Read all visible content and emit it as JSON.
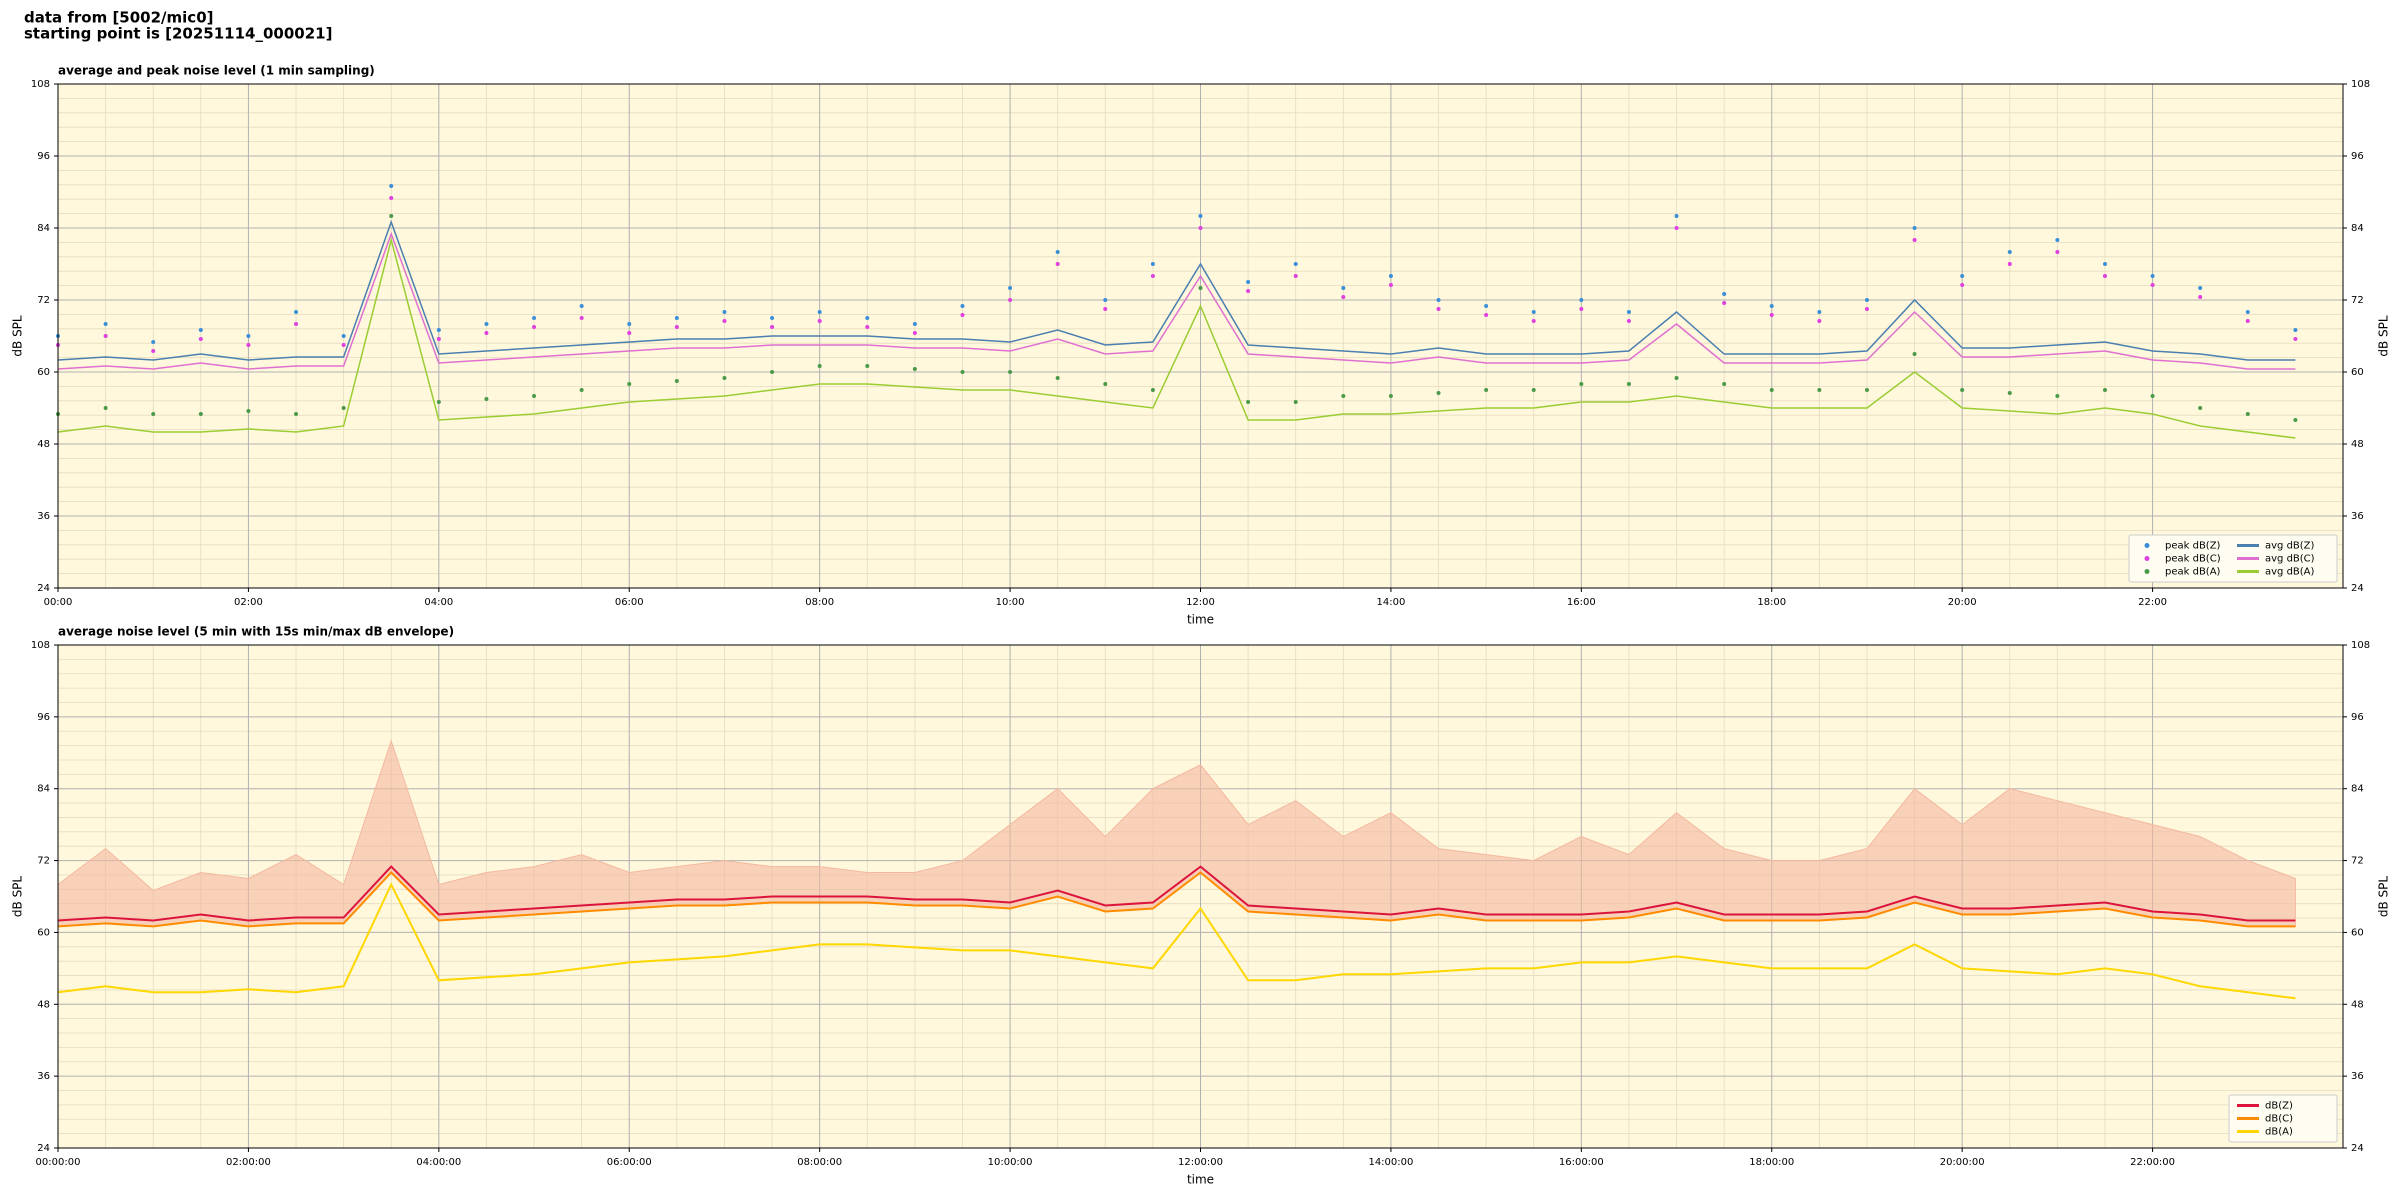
{
  "header": {
    "lines": [
      "data from [5002/mic0]",
      "starting point is [20251114_000021]"
    ]
  },
  "chart_data": [
    {
      "type": "line",
      "title": "average and peak noise level (1 min sampling)",
      "x_label": "time",
      "y_label": "dB SPL",
      "x": [
        0,
        0.5,
        1,
        1.5,
        2,
        2.5,
        3,
        3.5,
        4,
        4.5,
        5,
        5.5,
        6,
        6.5,
        7,
        7.5,
        8,
        8.5,
        9,
        9.5,
        10,
        10.5,
        11,
        11.5,
        12,
        12.5,
        13,
        13.5,
        14,
        14.5,
        15,
        15.5,
        16,
        16.5,
        17,
        17.5,
        18,
        18.5,
        19,
        19.5,
        20,
        20.5,
        21,
        21.5,
        22,
        22.5,
        23,
        23.5
      ],
      "xlim": [
        0,
        24
      ],
      "xticks": [
        {
          "value": 0,
          "label": "00:00"
        },
        {
          "value": 2,
          "label": "02:00"
        },
        {
          "value": 4,
          "label": "04:00"
        },
        {
          "value": 6,
          "label": "06:00"
        },
        {
          "value": 8,
          "label": "08:00"
        },
        {
          "value": 10,
          "label": "10:00"
        },
        {
          "value": 12,
          "label": "12:00"
        },
        {
          "value": 14,
          "label": "14:00"
        },
        {
          "value": 16,
          "label": "16:00"
        },
        {
          "value": 18,
          "label": "18:00"
        },
        {
          "value": 20,
          "label": "20:00"
        },
        {
          "value": 22,
          "label": "22:00"
        }
      ],
      "ylim": [
        24,
        108
      ],
      "yticks": [
        24,
        36,
        48,
        60,
        72,
        84,
        96,
        108
      ],
      "grid": true,
      "legend": "lower right",
      "legend_columns": 2,
      "background": "#fff8dc",
      "series": [
        {
          "name": "peak dB(Z)",
          "type": "scatter",
          "color": "#3a8fd8",
          "values": [
            66,
            68,
            65,
            67,
            66,
            70,
            66,
            91,
            67,
            68,
            69,
            71,
            68,
            69,
            70,
            69,
            70,
            69,
            68,
            71,
            74,
            80,
            72,
            78,
            86,
            75,
            78,
            74,
            76,
            72,
            71,
            70,
            72,
            70,
            86,
            73,
            71,
            70,
            72,
            84,
            76,
            80,
            82,
            78,
            76,
            74,
            70,
            67
          ]
        },
        {
          "name": "peak dB(C)",
          "type": "scatter",
          "color": "#e040e0",
          "values": [
            64.5,
            66,
            63.5,
            65.5,
            64.5,
            68,
            64.5,
            89,
            65.5,
            66.5,
            67.5,
            69,
            66.5,
            67.5,
            68.5,
            67.5,
            68.5,
            67.5,
            66.5,
            69.5,
            72,
            78,
            70.5,
            76,
            84,
            73.5,
            76,
            72.5,
            74.5,
            70.5,
            69.5,
            68.5,
            70.5,
            68.5,
            84,
            71.5,
            69.5,
            68.5,
            70.5,
            82,
            74.5,
            78,
            80,
            76,
            74.5,
            72.5,
            68.5,
            65.5
          ]
        },
        {
          "name": "peak dB(A)",
          "type": "scatter",
          "color": "#4a9a4a",
          "values": [
            53,
            54,
            53,
            53,
            53.5,
            53,
            54,
            86,
            55,
            55.5,
            56,
            57,
            58,
            58.5,
            59,
            60,
            61,
            61,
            60.5,
            60,
            60,
            59,
            58,
            57,
            74,
            55,
            55,
            56,
            56,
            56.5,
            57,
            57,
            58,
            58,
            59,
            58,
            57,
            57,
            57,
            63,
            57,
            56.5,
            56,
            57,
            56,
            54,
            53,
            52
          ]
        },
        {
          "name": "avg dB(Z)",
          "type": "line",
          "color": "#4a7fb0",
          "values": [
            62,
            62.5,
            62,
            63,
            62,
            62.5,
            62.5,
            85,
            63,
            63.5,
            64,
            64.5,
            65,
            65.5,
            65.5,
            66,
            66,
            66,
            65.5,
            65.5,
            65,
            67,
            64.5,
            65,
            78,
            64.5,
            64,
            63.5,
            63,
            64,
            63,
            63,
            63,
            63.5,
            70,
            63,
            63,
            63,
            63.5,
            72,
            64,
            64,
            64.5,
            65,
            63.5,
            63,
            62,
            62
          ]
        },
        {
          "name": "avg dB(C)",
          "type": "line",
          "color": "#e070d0",
          "values": [
            60.5,
            61,
            60.5,
            61.5,
            60.5,
            61,
            61,
            83,
            61.5,
            62,
            62.5,
            63,
            63.5,
            64,
            64,
            64.5,
            64.5,
            64.5,
            64,
            64,
            63.5,
            65.5,
            63,
            63.5,
            76,
            63,
            62.5,
            62,
            61.5,
            62.5,
            61.5,
            61.5,
            61.5,
            62,
            68,
            61.5,
            61.5,
            61.5,
            62,
            70,
            62.5,
            62.5,
            63,
            63.5,
            62,
            61.5,
            60.5,
            60.5
          ]
        },
        {
          "name": "avg dB(A)",
          "type": "line",
          "color": "#9acd32",
          "values": [
            50,
            51,
            50,
            50,
            50.5,
            50,
            51,
            82,
            52,
            52.5,
            53,
            54,
            55,
            55.5,
            56,
            57,
            58,
            58,
            57.5,
            57,
            57,
            56,
            55,
            54,
            71,
            52,
            52,
            53,
            53,
            53.5,
            54,
            54,
            55,
            55,
            56,
            55,
            54,
            54,
            54,
            60,
            54,
            53.5,
            53,
            54,
            53,
            51,
            50,
            49
          ]
        }
      ]
    },
    {
      "type": "line",
      "title": "average noise level (5 min with 15s min/max dB envelope)",
      "x_label": "time",
      "y_label": "dB SPL",
      "x": [
        0,
        0.5,
        1,
        1.5,
        2,
        2.5,
        3,
        3.5,
        4,
        4.5,
        5,
        5.5,
        6,
        6.5,
        7,
        7.5,
        8,
        8.5,
        9,
        9.5,
        10,
        10.5,
        11,
        11.5,
        12,
        12.5,
        13,
        13.5,
        14,
        14.5,
        15,
        15.5,
        16,
        16.5,
        17,
        17.5,
        18,
        18.5,
        19,
        19.5,
        20,
        20.5,
        21,
        21.5,
        22,
        22.5,
        23,
        23.5
      ],
      "xlim": [
        0,
        24
      ],
      "xticks": [
        {
          "value": 0,
          "label": "00:00:00"
        },
        {
          "value": 2,
          "label": "02:00:00"
        },
        {
          "value": 4,
          "label": "04:00:00"
        },
        {
          "value": 6,
          "label": "06:00:00"
        },
        {
          "value": 8,
          "label": "08:00:00"
        },
        {
          "value": 10,
          "label": "10:00:00"
        },
        {
          "value": 12,
          "label": "12:00:00"
        },
        {
          "value": 14,
          "label": "14:00:00"
        },
        {
          "value": 16,
          "label": "16:00:00"
        },
        {
          "value": 18,
          "label": "18:00:00"
        },
        {
          "value": 20,
          "label": "20:00:00"
        },
        {
          "value": 22,
          "label": "22:00:00"
        }
      ],
      "ylim": [
        24,
        108
      ],
      "yticks": [
        24,
        36,
        48,
        60,
        72,
        84,
        96,
        108
      ],
      "grid": true,
      "legend": "lower right",
      "legend_columns": 1,
      "background": "#fff8dc",
      "envelope": {
        "color": "#f4b8a0",
        "values": [
          68,
          74,
          67,
          70,
          69,
          73,
          68,
          92,
          68,
          70,
          71,
          73,
          70,
          71,
          72,
          71,
          71,
          70,
          70,
          72,
          78,
          84,
          76,
          84,
          88,
          78,
          82,
          76,
          80,
          74,
          73,
          72,
          76,
          73,
          80,
          74,
          72,
          72,
          74,
          84,
          78,
          84,
          82,
          80,
          78,
          76,
          72,
          69
        ]
      },
      "series": [
        {
          "name": "dB(Z)",
          "type": "line",
          "color": "#dc143c",
          "values": [
            62,
            62.5,
            62,
            63,
            62,
            62.5,
            62.5,
            71,
            63,
            63.5,
            64,
            64.5,
            65,
            65.5,
            65.5,
            66,
            66,
            66,
            65.5,
            65.5,
            65,
            67,
            64.5,
            65,
            71,
            64.5,
            64,
            63.5,
            63,
            64,
            63,
            63,
            63,
            63.5,
            65,
            63,
            63,
            63,
            63.5,
            66,
            64,
            64,
            64.5,
            65,
            63.5,
            63,
            62,
            62
          ]
        },
        {
          "name": "dB(C)",
          "type": "line",
          "color": "#ff8c00",
          "values": [
            61,
            61.5,
            61,
            62,
            61,
            61.5,
            61.5,
            70,
            62,
            62.5,
            63,
            63.5,
            64,
            64.5,
            64.5,
            65,
            65,
            65,
            64.5,
            64.5,
            64,
            66,
            63.5,
            64,
            70,
            63.5,
            63,
            62.5,
            62,
            63,
            62,
            62,
            62,
            62.5,
            64,
            62,
            62,
            62,
            62.5,
            65,
            63,
            63,
            63.5,
            64,
            62.5,
            62,
            61,
            61
          ]
        },
        {
          "name": "dB(A)",
          "type": "line",
          "color": "#ffd700",
          "values": [
            50,
            51,
            50,
            50,
            50.5,
            50,
            51,
            68,
            52,
            52.5,
            53,
            54,
            55,
            55.5,
            56,
            57,
            58,
            58,
            57.5,
            57,
            57,
            56,
            55,
            54,
            64,
            52,
            52,
            53,
            53,
            53.5,
            54,
            54,
            55,
            55,
            56,
            55,
            54,
            54,
            54,
            58,
            54,
            53.5,
            53,
            54,
            53,
            51,
            50,
            49
          ]
        }
      ]
    }
  ]
}
